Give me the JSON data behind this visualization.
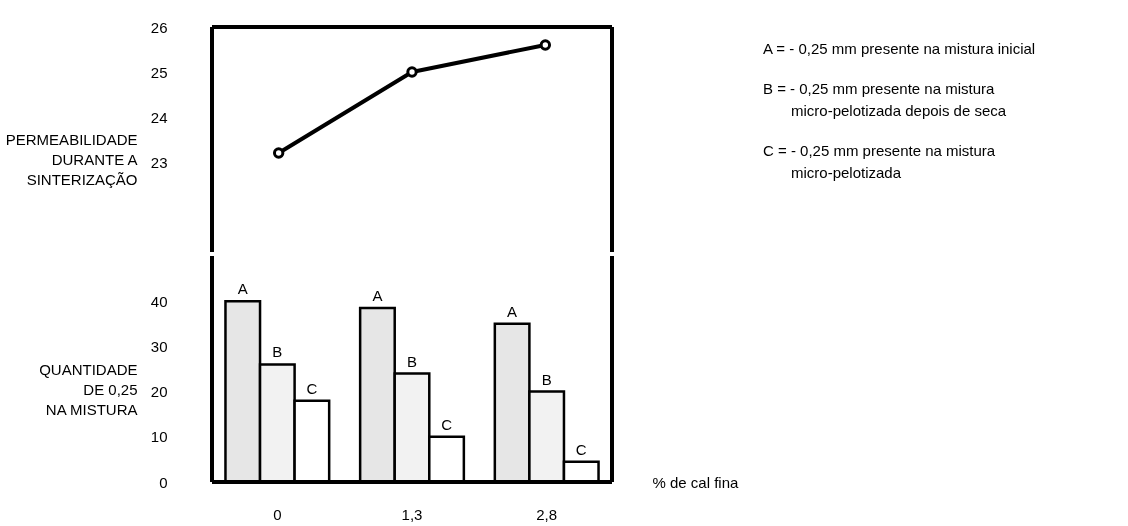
{
  "chart_data": [
    {
      "type": "line",
      "ylabel": "PERMEABILIDADE\nDURANTE A\nSINTERIZAÇÃO",
      "categories": [
        "0",
        "1,3",
        "2,8"
      ],
      "series": [
        {
          "color": "#000000",
          "values": [
            23.2,
            25.0,
            25.6
          ]
        }
      ],
      "ylim": [
        21,
        26
      ],
      "yticks": [
        23,
        24,
        25,
        26
      ],
      "marker": "circle",
      "line_style": "solid",
      "tick_labels": "y",
      "grid": false,
      "annotations": [
        "A = - 0,25 mm presente na mistura inicial",
        "B = - 0,25 mm presente na mistura\nmicro-pelotizada depois de seca",
        "C = - 0,25 mm presente na mistura\nmicro-pelotizada"
      ]
    },
    {
      "type": "bar",
      "ylabel": "QUANTIDADE\nDE 0,25\nNA MISTURA",
      "xlabel": "% de cal fina",
      "categories": [
        "0",
        "1,3",
        "2,8"
      ],
      "series": [
        {
          "name": "A",
          "color": "#e6e6e6",
          "values": [
            40,
            38.5,
            35
          ]
        },
        {
          "name": "B",
          "color": "#f2f2f2",
          "values": [
            26,
            24,
            20
          ]
        },
        {
          "name": "C",
          "color": "#ffffff",
          "values": [
            18,
            10,
            4.5
          ]
        }
      ],
      "ylim": [
        0,
        50
      ],
      "yticks": [
        0,
        10,
        20,
        30,
        40
      ],
      "grid": false,
      "legend": false
    }
  ]
}
